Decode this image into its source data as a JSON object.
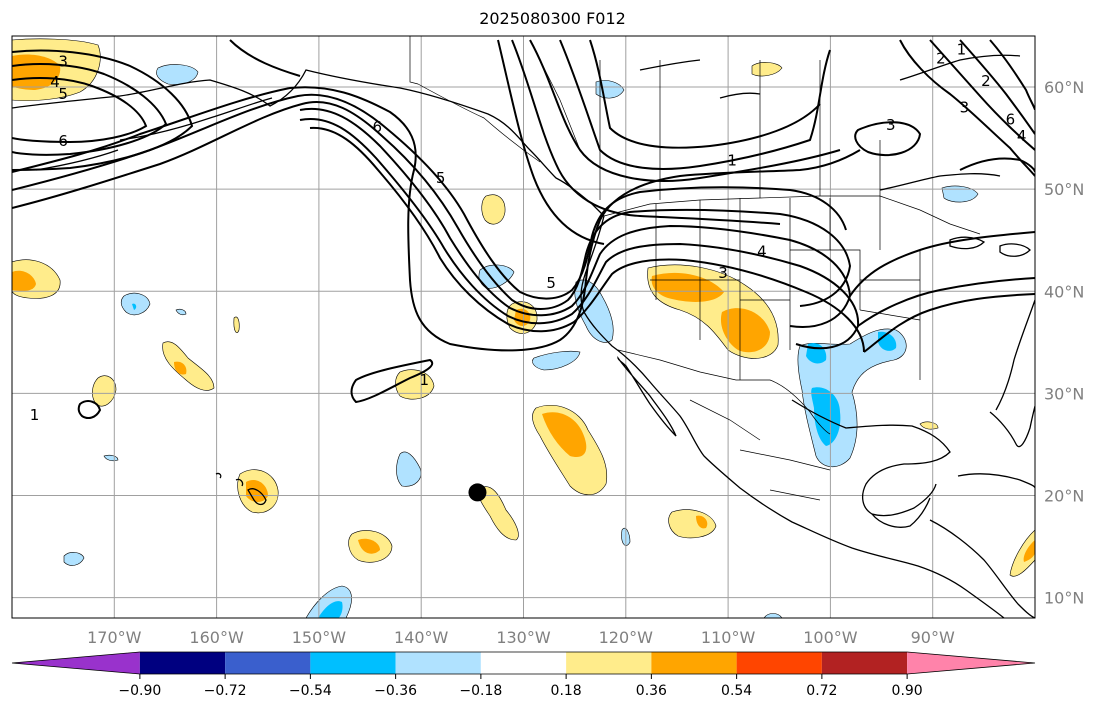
{
  "title": "2025080300 F012",
  "map": {
    "lon_range": [
      -180,
      -80
    ],
    "lat_range": [
      8,
      65
    ],
    "meridians": [
      -170,
      -160,
      -150,
      -140,
      -130,
      -120,
      -110,
      -100,
      -90
    ],
    "parallels": [
      10,
      20,
      30,
      40,
      50,
      60
    ],
    "grid": true,
    "lon_labels": [
      "170°W",
      "160°W",
      "150°W",
      "140°W",
      "130°W",
      "120°W",
      "110°W",
      "100°W",
      "90°W"
    ],
    "lat_labels": [
      "10°N",
      "20°N",
      "30°N",
      "40°N",
      "50°N",
      "60°N"
    ],
    "grid_color": "#a0a0a0",
    "coast_color": "#000000"
  },
  "contour_labels": [
    {
      "text": "3",
      "lon": -175,
      "lat": 62.5
    },
    {
      "text": "4",
      "lon": -175.8,
      "lat": 60.5
    },
    {
      "text": "5",
      "lon": -175,
      "lat": 59.3
    },
    {
      "text": "6",
      "lon": -175,
      "lat": 54.7
    },
    {
      "text": "6",
      "lon": -144.3,
      "lat": 56.1
    },
    {
      "text": "5",
      "lon": -138.1,
      "lat": 51.1
    },
    {
      "text": "5",
      "lon": -127.3,
      "lat": 40.8
    },
    {
      "text": "1",
      "lon": -109.6,
      "lat": 52.8
    },
    {
      "text": "3",
      "lon": -94.1,
      "lat": 56.3
    },
    {
      "text": "4",
      "lon": -106.7,
      "lat": 43.9
    },
    {
      "text": "3",
      "lon": -110.5,
      "lat": 41.8
    },
    {
      "text": "1",
      "lon": -139.7,
      "lat": 31.3
    },
    {
      "text": "1",
      "lon": -177.8,
      "lat": 27.9
    },
    {
      "text": "2",
      "lon": -89.2,
      "lat": 62.8
    },
    {
      "text": "1",
      "lon": -87.2,
      "lat": 63.7
    },
    {
      "text": "2",
      "lon": -84.8,
      "lat": 60.6
    },
    {
      "text": "3",
      "lon": -86.9,
      "lat": 58.0
    },
    {
      "text": "6",
      "lon": -82.4,
      "lat": 56.8
    },
    {
      "text": "4",
      "lon": -81.3,
      "lat": 55.2
    }
  ],
  "marker": {
    "lon": -134.5,
    "lat": 20.3,
    "color": "#000000"
  },
  "colorbar": {
    "ticks": [
      "−0.90",
      "−0.72",
      "−0.54",
      "−0.36",
      "−0.18",
      "0.18",
      "0.36",
      "0.54",
      "0.72",
      "0.90"
    ],
    "tick_values": [
      -0.9,
      -0.72,
      -0.54,
      -0.36,
      -0.18,
      0.18,
      0.36,
      0.54,
      0.72,
      0.9
    ],
    "colors": [
      "#9932cc",
      "#000080",
      "#3a5fcd",
      "#00bfff",
      "#b0e2ff",
      "#ffffff",
      "#ffec8b",
      "#ffa500",
      "#ff4500",
      "#b22222",
      "#ff83aa"
    ],
    "extend": "both"
  },
  "fill_colors": {
    "light_blue": "#b0e2ff",
    "blue": "#00bfff",
    "light_yellow": "#ffec8b",
    "orange": "#ffa500"
  }
}
